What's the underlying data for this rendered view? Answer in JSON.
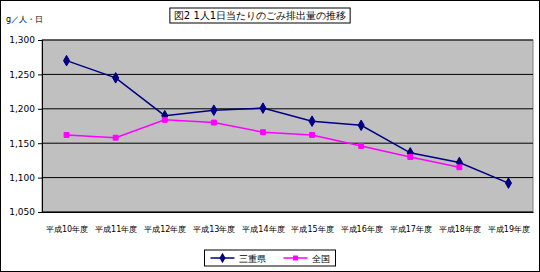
{
  "chart_data": {
    "type": "line",
    "title": "図2 1人1日当たりのごみ排出量の推移",
    "y_label": "g／人・日",
    "categories": [
      "平成10年度",
      "平成11年度",
      "平成12年度",
      "平成13年度",
      "平成14年度",
      "平成15年度",
      "平成16年度",
      "平成17年度",
      "平成18年度",
      "平成19年度"
    ],
    "series": [
      {
        "name": "三重県",
        "color": "#000080",
        "marker": "diamond",
        "values": [
          1270,
          1245,
          1190,
          1198,
          1201,
          1182,
          1176,
          1136,
          1122,
          1092
        ]
      },
      {
        "name": "全国",
        "color": "#ff00ff",
        "marker": "square",
        "values": [
          1162,
          1158,
          1184,
          1180,
          1166,
          1162,
          1146,
          1130,
          1115,
          null
        ]
      }
    ],
    "ylim": [
      1050,
      1300
    ],
    "yticks": [
      {
        "value": 1050,
        "label": "1,050"
      },
      {
        "value": 1100,
        "label": "1,100"
      },
      {
        "value": 1150,
        "label": "1,150"
      },
      {
        "value": 1200,
        "label": "1,200"
      },
      {
        "value": 1250,
        "label": "1,250"
      },
      {
        "value": 1300,
        "label": "1,300"
      }
    ],
    "grid": true,
    "legend": "bottom"
  }
}
